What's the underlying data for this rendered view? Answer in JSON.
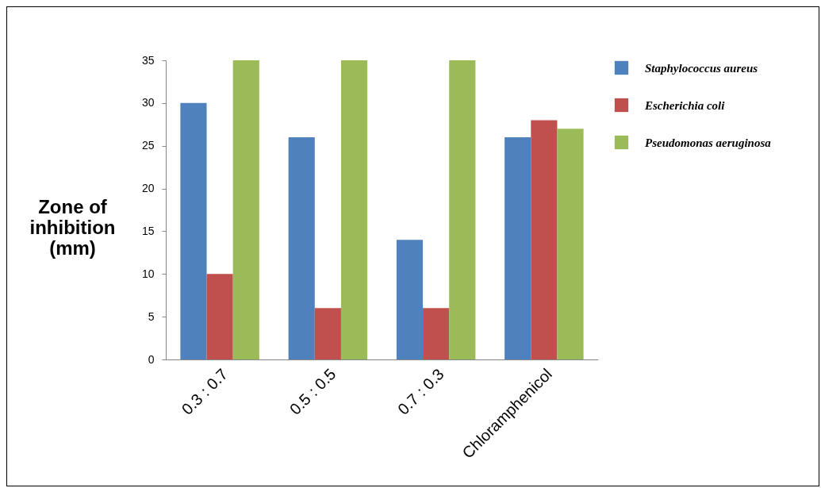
{
  "chart_data": {
    "type": "bar",
    "ylabel": "Zone of inhibition (mm)",
    "categories": [
      "0.3 : 0.7",
      "0.5 : 0.5",
      "0.7 : 0.3",
      "Chloramphenicol"
    ],
    "series": [
      {
        "name": "Staphylococcus aureus",
        "color": "#4f81bd",
        "values": [
          30,
          26,
          14,
          26
        ]
      },
      {
        "name": "Escherichia coli",
        "color": "#c0504d",
        "values": [
          10,
          6,
          6,
          28
        ]
      },
      {
        "name": "Pseudomonas aeruginosa",
        "color": "#9bbb59",
        "values": [
          35,
          35,
          35,
          27
        ]
      }
    ],
    "ylim": [
      0,
      35
    ],
    "yticks": [
      0,
      5,
      10,
      15,
      20,
      25,
      30,
      35
    ],
    "grid": false,
    "legend": "right"
  }
}
